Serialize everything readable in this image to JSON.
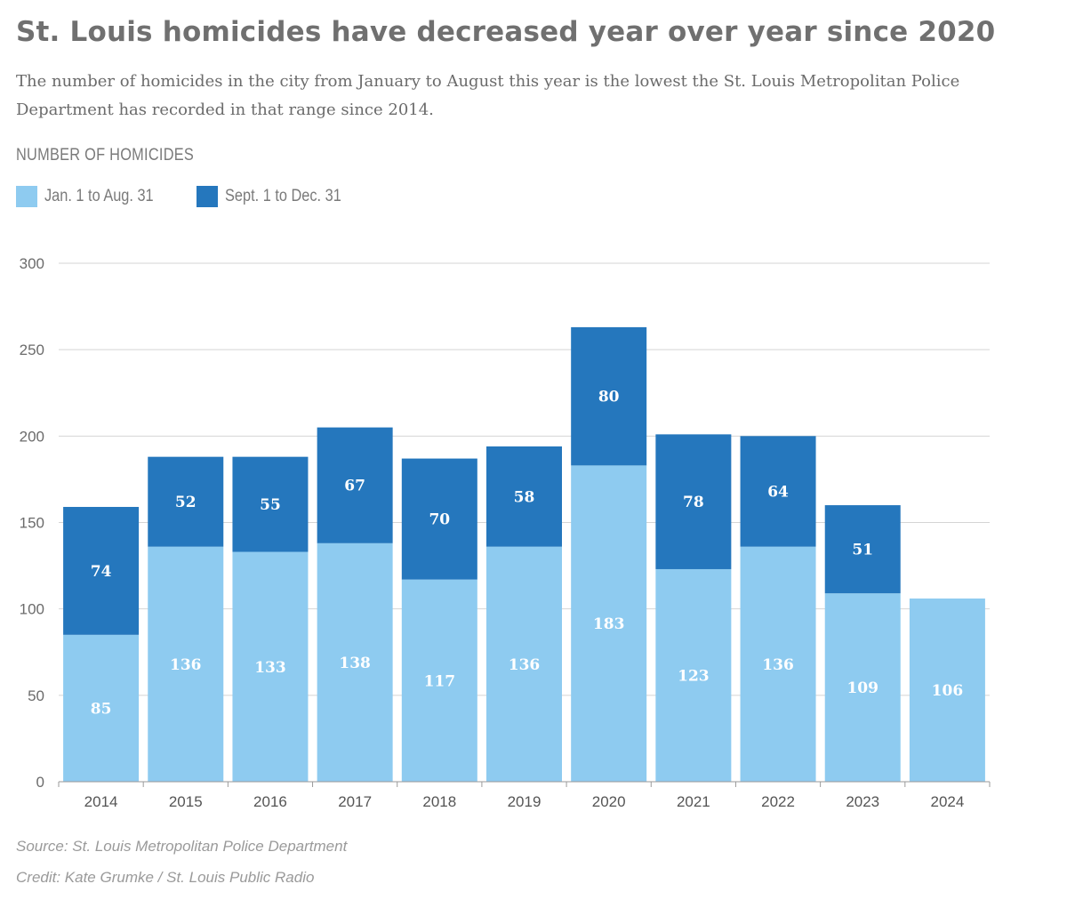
{
  "header": {
    "title": "St. Louis homicides have decreased year over year since 2020",
    "subtitle": "The number of homicides in the city from January to August this year is the lowest the St. Louis Metropolitan Police Department has recorded in that range since 2014.",
    "unit_label": "NUMBER OF HOMICIDES"
  },
  "legend": [
    {
      "label": "Jan. 1 to Aug. 31",
      "color": "#8ecbf0"
    },
    {
      "label": "Sept. 1 to Dec. 31",
      "color": "#2577bd"
    }
  ],
  "chart_data": {
    "type": "bar",
    "stacked": true,
    "categories": [
      "2014",
      "2015",
      "2016",
      "2017",
      "2018",
      "2019",
      "2020",
      "2021",
      "2022",
      "2023",
      "2024"
    ],
    "series": [
      {
        "name": "Jan. 1 to Aug. 31",
        "color": "#8ecbf0",
        "values": [
          85,
          136,
          133,
          138,
          117,
          136,
          183,
          123,
          136,
          109,
          106
        ]
      },
      {
        "name": "Sept. 1 to Dec. 31",
        "color": "#2577bd",
        "values": [
          74,
          52,
          55,
          67,
          70,
          58,
          80,
          78,
          64,
          51,
          null
        ]
      }
    ],
    "ylim": [
      0,
      300
    ],
    "yticks": [
      "0",
      "50",
      "100",
      "150",
      "200",
      "250",
      "300"
    ],
    "grid": true,
    "legend_position": "top-left",
    "data_labels": true
  },
  "footer": {
    "source": "Source: St. Louis Metropolitan Police Department",
    "credit": "Credit: Kate Grumke / St. Louis Public Radio"
  }
}
